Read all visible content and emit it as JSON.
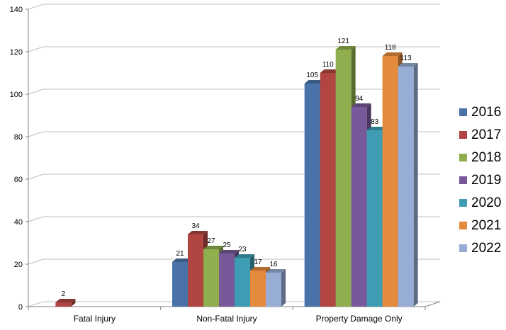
{
  "chart_data": {
    "type": "bar",
    "categories": [
      "Fatal Injury",
      "Non-Fatal Injury",
      "Property Damage Only"
    ],
    "series": [
      {
        "name": "2016",
        "color": "#4A72A8",
        "values": [
          null,
          21,
          105
        ]
      },
      {
        "name": "2017",
        "color": "#B04542",
        "values": [
          2,
          34,
          110
        ]
      },
      {
        "name": "2018",
        "color": "#8FAE4E",
        "values": [
          null,
          27,
          121
        ]
      },
      {
        "name": "2019",
        "color": "#77599A",
        "values": [
          null,
          25,
          94
        ]
      },
      {
        "name": "2020",
        "color": "#3E9DB2",
        "values": [
          null,
          23,
          83
        ]
      },
      {
        "name": "2021",
        "color": "#E48A3C",
        "values": [
          null,
          17,
          118
        ]
      },
      {
        "name": "2022",
        "color": "#97ADD5",
        "values": [
          null,
          16,
          113
        ]
      }
    ],
    "ylim": [
      0,
      140
    ],
    "yticks": [
      0,
      20,
      40,
      60,
      80,
      100,
      120,
      140
    ],
    "grid": true,
    "legend_position": "right",
    "data_labels": true,
    "title": "",
    "xlabel": "",
    "ylabel": ""
  }
}
